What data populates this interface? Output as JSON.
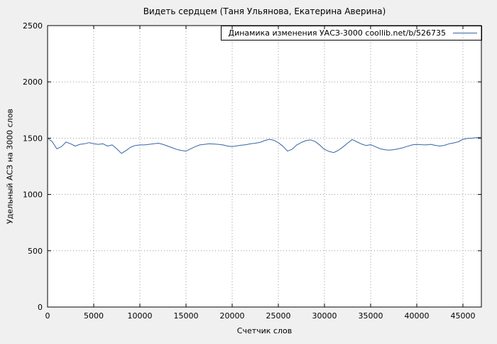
{
  "page": {
    "title": "Видеть сердцем (Таня Ульянова, Екатерина Аверина)"
  },
  "chart_data": {
    "type": "line",
    "title": "Видеть сердцем (Таня Ульянова, Екатерина Аверина)",
    "legend": {
      "label": "Динамика изменения УАСЗ-3000  coollib.net/b/526735",
      "position": "top-right"
    },
    "xlabel": "Счетчик слов",
    "ylabel": "Удельный АСЗ на 3000 слов",
    "xlim": [
      0,
      47000
    ],
    "ylim": [
      0,
      2500
    ],
    "xticks": [
      0,
      5000,
      10000,
      15000,
      20000,
      25000,
      30000,
      35000,
      40000,
      45000
    ],
    "yticks": [
      0,
      500,
      1000,
      1500,
      2000,
      2500
    ],
    "grid": true,
    "line_color": "#3465a4",
    "background": "#f0f0f0",
    "plot_background": "#ffffff",
    "series": [
      {
        "name": "УАСЗ-3000",
        "x": [
          0,
          500,
          1000,
          1500,
          2000,
          2500,
          3000,
          3500,
          4000,
          4500,
          5000,
          5500,
          6000,
          6500,
          7000,
          7500,
          8000,
          8500,
          9000,
          9500,
          10000,
          10500,
          11000,
          11500,
          12000,
          12500,
          13000,
          13500,
          14000,
          14500,
          15000,
          15500,
          16000,
          16500,
          17000,
          17500,
          18000,
          18500,
          19000,
          19500,
          20000,
          20500,
          21000,
          21500,
          22000,
          22500,
          23000,
          23500,
          24000,
          24500,
          25000,
          25500,
          26000,
          26500,
          27000,
          27500,
          28000,
          28500,
          29000,
          29500,
          30000,
          30500,
          31000,
          31500,
          32000,
          32500,
          33000,
          33500,
          34000,
          34500,
          35000,
          35500,
          36000,
          36500,
          37000,
          37500,
          38000,
          38500,
          39000,
          39500,
          40000,
          40500,
          41000,
          41500,
          42000,
          42500,
          43000,
          43500,
          44000,
          44500,
          45000,
          45500,
          46000,
          46500,
          47000
        ],
        "values": [
          1500,
          1470,
          1405,
          1425,
          1465,
          1450,
          1430,
          1445,
          1450,
          1460,
          1450,
          1445,
          1450,
          1430,
          1440,
          1405,
          1365,
          1390,
          1420,
          1435,
          1440,
          1440,
          1445,
          1450,
          1455,
          1445,
          1430,
          1415,
          1400,
          1390,
          1385,
          1405,
          1425,
          1440,
          1445,
          1450,
          1448,
          1445,
          1440,
          1430,
          1425,
          1432,
          1438,
          1442,
          1450,
          1455,
          1462,
          1478,
          1490,
          1482,
          1460,
          1428,
          1385,
          1402,
          1440,
          1462,
          1478,
          1485,
          1470,
          1438,
          1400,
          1382,
          1372,
          1392,
          1422,
          1455,
          1488,
          1468,
          1448,
          1435,
          1442,
          1425,
          1408,
          1398,
          1393,
          1398,
          1405,
          1415,
          1428,
          1440,
          1445,
          1442,
          1440,
          1445,
          1436,
          1430,
          1436,
          1450,
          1458,
          1468,
          1490,
          1498,
          1500,
          1505,
          1508
        ]
      }
    ]
  }
}
